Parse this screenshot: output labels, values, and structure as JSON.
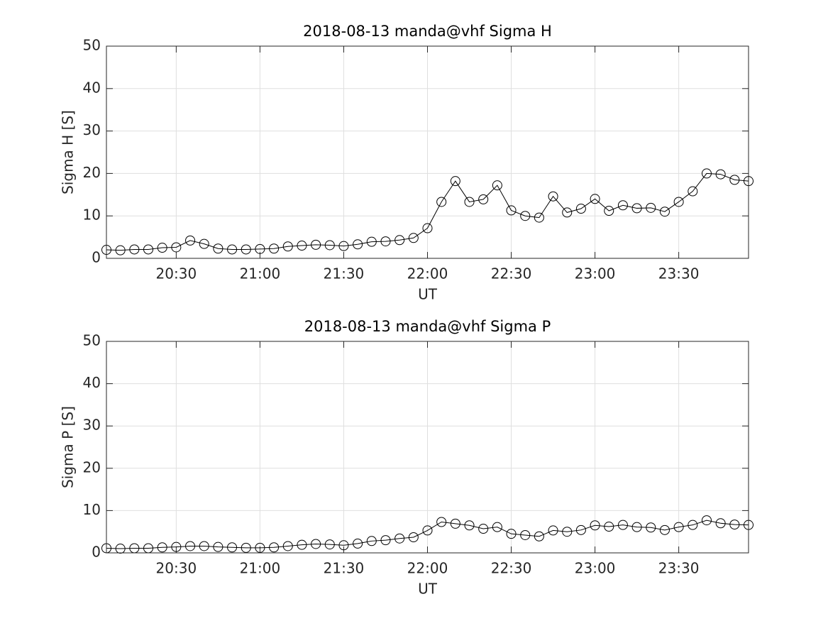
{
  "chart_data": [
    {
      "type": "line",
      "title": "2018-08-13  manda@vhf Sigma H",
      "xlabel": "UT",
      "ylabel": "Sigma H [S]",
      "x": [
        "20:05",
        "20:10",
        "20:15",
        "20:20",
        "20:25",
        "20:30",
        "20:35",
        "20:40",
        "20:45",
        "20:50",
        "20:55",
        "21:00",
        "21:05",
        "21:10",
        "21:15",
        "21:20",
        "21:25",
        "21:30",
        "21:35",
        "21:40",
        "21:45",
        "21:50",
        "21:55",
        "22:00",
        "22:05",
        "22:10",
        "22:15",
        "22:20",
        "22:25",
        "22:30",
        "22:35",
        "22:40",
        "22:45",
        "22:50",
        "22:55",
        "23:00",
        "23:05",
        "23:10",
        "23:15",
        "23:20",
        "23:25",
        "23:30",
        "23:35",
        "23:40",
        "23:45",
        "23:50",
        "23:55"
      ],
      "values": [
        2.0,
        1.9,
        2.1,
        2.1,
        2.5,
        2.6,
        4.2,
        3.4,
        2.3,
        2.1,
        2.1,
        2.2,
        2.3,
        2.8,
        3.0,
        3.2,
        3.1,
        2.9,
        3.3,
        3.9,
        4.0,
        4.3,
        4.8,
        7.1,
        13.3,
        18.2,
        13.3,
        13.9,
        17.2,
        11.3,
        10.0,
        9.6,
        14.6,
        10.8,
        11.7,
        14.0,
        11.2,
        12.5,
        11.8,
        11.9,
        11.0,
        13.3,
        15.8,
        20.0,
        19.8,
        18.5,
        18.2
      ],
      "color": "#000000",
      "marker": "o",
      "xlim": [
        "20:05",
        "23:55"
      ],
      "xticks": [
        "20:30",
        "21:00",
        "21:30",
        "22:00",
        "22:30",
        "23:00",
        "23:30"
      ],
      "ylim": [
        0,
        50
      ],
      "yticks": [
        0,
        10,
        20,
        30,
        40,
        50
      ],
      "grid": true
    },
    {
      "type": "line",
      "title": "2018-08-13  manda@vhf Sigma P",
      "xlabel": "UT",
      "ylabel": "Sigma P [S]",
      "x": [
        "20:05",
        "20:10",
        "20:15",
        "20:20",
        "20:25",
        "20:30",
        "20:35",
        "20:40",
        "20:45",
        "20:50",
        "20:55",
        "21:00",
        "21:05",
        "21:10",
        "21:15",
        "21:20",
        "21:25",
        "21:30",
        "21:35",
        "21:40",
        "21:45",
        "21:50",
        "21:55",
        "22:00",
        "22:05",
        "22:10",
        "22:15",
        "22:20",
        "22:25",
        "22:30",
        "22:35",
        "22:40",
        "22:45",
        "22:50",
        "22:55",
        "23:00",
        "23:05",
        "23:10",
        "23:15",
        "23:20",
        "23:25",
        "23:30",
        "23:35",
        "23:40",
        "23:45",
        "23:50",
        "23:55"
      ],
      "values": [
        1.1,
        1.0,
        1.1,
        1.1,
        1.3,
        1.4,
        1.6,
        1.6,
        1.4,
        1.3,
        1.2,
        1.2,
        1.3,
        1.6,
        1.9,
        2.1,
        2.0,
        1.8,
        2.2,
        2.8,
        3.0,
        3.4,
        3.7,
        5.3,
        7.3,
        6.9,
        6.5,
        5.7,
        6.1,
        4.5,
        4.2,
        3.9,
        5.3,
        5.0,
        5.4,
        6.5,
        6.2,
        6.6,
        6.1,
        6.0,
        5.4,
        6.1,
        6.6,
        7.7,
        7.0,
        6.7,
        6.6
      ],
      "color": "#000000",
      "marker": "o",
      "xlim": [
        "20:05",
        "23:55"
      ],
      "xticks": [
        "20:30",
        "21:00",
        "21:30",
        "22:00",
        "22:30",
        "23:00",
        "23:30"
      ],
      "ylim": [
        0,
        50
      ],
      "yticks": [
        0,
        10,
        20,
        30,
        40,
        50
      ],
      "grid": true
    }
  ]
}
